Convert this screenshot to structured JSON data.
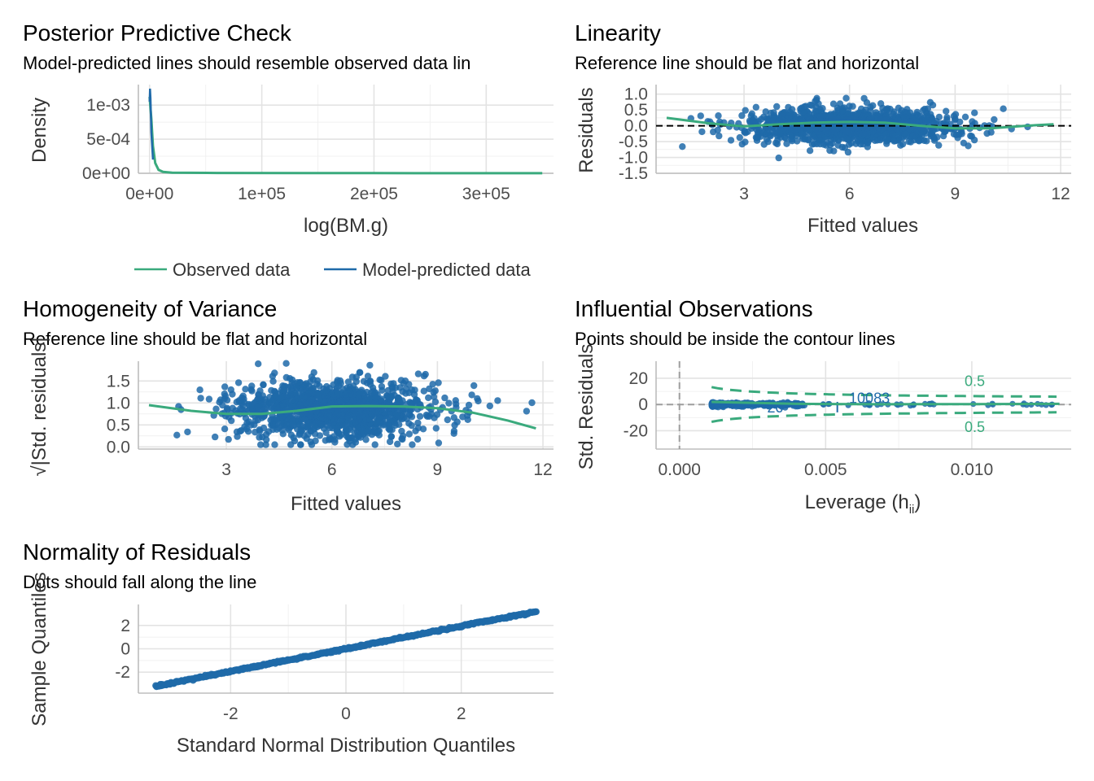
{
  "colors": {
    "observed": "#3aaa7d",
    "predicted": "#1f6aa9",
    "points": "#1f6aa9",
    "reference": "#000000",
    "contour": "#3aaa7d",
    "grid": "#e3e3e3"
  },
  "chart_data": [
    {
      "id": "ppc",
      "type": "line",
      "title": "Posterior Predictive Check",
      "subtitle": "Model-predicted lines should resemble observed data lin",
      "xlabel": "log(BM.g)",
      "ylabel": "Density",
      "xlim": [
        -10000,
        360000
      ],
      "ylim": [
        0,
        0.0013
      ],
      "xticks": [
        0,
        100000,
        200000,
        300000
      ],
      "xtick_labels": [
        "0e+00",
        "1e+05",
        "2e+05",
        "3e+05"
      ],
      "yticks": [
        0,
        0.0005,
        0.001
      ],
      "ytick_labels": [
        "0e+00",
        "5e-04",
        "1e-03"
      ],
      "legend": {
        "position": "bottom",
        "entries": [
          "Observed data",
          "Model-predicted data"
        ]
      },
      "series": [
        {
          "name": "Observed data",
          "x": [
            0,
            1500,
            3000,
            5000,
            8000,
            12000,
            20000,
            60000,
            200000,
            350000
          ],
          "y": [
            0.00112,
            0.0008,
            0.0004,
            0.00015,
            5e-05,
            2e-05,
            1e-05,
            5e-06,
            2e-06,
            1e-06
          ]
        },
        {
          "name": "Model-predicted data",
          "x": [
            0,
            400,
            800,
            1500,
            3000
          ],
          "y": [
            0.00105,
            0.00124,
            0.0011,
            0.0006,
            0.0002
          ]
        }
      ]
    },
    {
      "id": "linearity",
      "type": "scatter",
      "title": "Linearity",
      "subtitle": "Reference line should be flat and horizontal",
      "xlabel": "Fitted values",
      "ylabel": "Residuals",
      "xlim": [
        0.5,
        12.3
      ],
      "ylim": [
        -1.5,
        1.3
      ],
      "xticks": [
        3,
        6,
        9,
        12
      ],
      "xtick_labels": [
        "3",
        "6",
        "9",
        "12"
      ],
      "yticks": [
        -1.5,
        -1,
        -0.5,
        0,
        0.5,
        1
      ],
      "ytick_labels": [
        "-1.5",
        "-1.0",
        "-0.5",
        "0.0",
        "0.5",
        "1.0"
      ],
      "reference_y": 0,
      "smooth": {
        "x": [
          0.8,
          2,
          3,
          4,
          5,
          6,
          7,
          8,
          9,
          10,
          11,
          11.8
        ],
        "y": [
          0.25,
          0.08,
          -0.02,
          0.05,
          0.1,
          0.12,
          0.1,
          0,
          -0.08,
          -0.08,
          0,
          0.05
        ]
      }
    },
    {
      "id": "homogeneity",
      "type": "scatter",
      "title": "Homogeneity of Variance",
      "subtitle": "Reference line should be flat and horizontal",
      "xlabel": "Fitted values",
      "ylabel": "√|Std. residuals|",
      "xlim": [
        0.5,
        12.3
      ],
      "ylim": [
        -0.05,
        1.95
      ],
      "xticks": [
        3,
        6,
        9,
        12
      ],
      "xtick_labels": [
        "3",
        "6",
        "9",
        "12"
      ],
      "yticks": [
        0,
        0.5,
        1,
        1.5
      ],
      "ytick_labels": [
        "0.0",
        "0.5",
        "1.0",
        "1.5"
      ],
      "smooth": {
        "x": [
          0.8,
          2,
          3,
          4,
          5,
          6,
          7,
          8,
          9,
          10,
          11,
          11.8
        ],
        "y": [
          0.95,
          0.82,
          0.75,
          0.75,
          0.82,
          0.92,
          0.93,
          0.92,
          0.88,
          0.78,
          0.6,
          0.42
        ]
      }
    },
    {
      "id": "influential",
      "type": "scatter",
      "title": "Influential Observations",
      "subtitle": "Points should be inside the contour lines",
      "xlabel": "Leverage (h",
      "xlabel_sub": "ii",
      "xlabel_end": ")",
      "ylabel": "Std. Residuals",
      "xlim": [
        -0.0008,
        0.0134
      ],
      "ylim": [
        -34,
        33
      ],
      "xticks": [
        0,
        0.005,
        0.01
      ],
      "xtick_labels": [
        "0.000",
        "0.005",
        "0.010"
      ],
      "yticks": [
        -20,
        0,
        20
      ],
      "ytick_labels": [
        "-20",
        "0",
        "20"
      ],
      "contour_label": "0.5",
      "point_labels": [
        "10083",
        "20"
      ]
    },
    {
      "id": "normality",
      "type": "scatter",
      "title": "Normality of Residuals",
      "subtitle": "Dots should fall along the line",
      "xlabel": "Standard Normal Distribution Quantiles",
      "ylabel": "Sample Quantiles",
      "xlim": [
        -3.6,
        3.6
      ],
      "ylim": [
        -3.8,
        3.8
      ],
      "xticks": [
        -2,
        0,
        2
      ],
      "xtick_labels": [
        "-2",
        "0",
        "2"
      ],
      "yticks": [
        -2,
        0,
        2
      ],
      "ytick_labels": [
        "-2",
        "0",
        "2"
      ],
      "line": {
        "x": [
          -3.3,
          3.3
        ],
        "y": [
          -3.2,
          3.2
        ]
      }
    }
  ]
}
